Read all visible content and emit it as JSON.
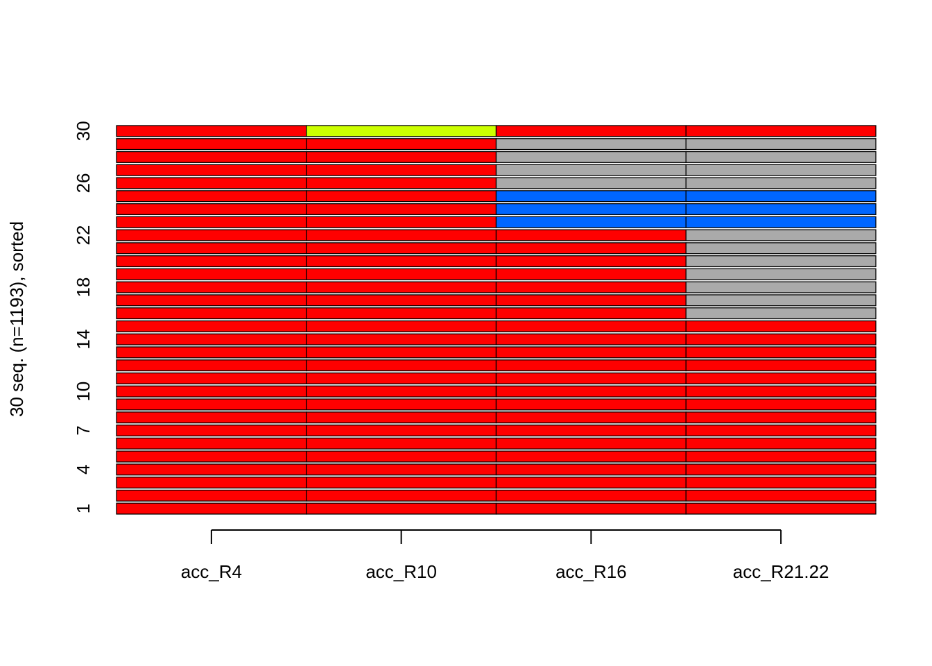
{
  "chart_data": {
    "type": "heatmap",
    "title": "",
    "xlabel": "",
    "ylabel": "30 seq. (n=1193), sorted",
    "categories": [
      "acc_R4",
      "acc_R10",
      "acc_R16",
      "acc_R21.22"
    ],
    "y_tick_labels": [
      "1",
      "4",
      "7",
      "10",
      "14",
      "18",
      "22",
      "26",
      "30"
    ],
    "y_tick_values": [
      1,
      4,
      7,
      10,
      14,
      18,
      22,
      26,
      30
    ],
    "states": {
      "R": "#ff0000",
      "Y": "#ccff00",
      "G": "#aaaaaa",
      "B": "#0066ff"
    },
    "sequences": [
      [
        "R",
        "R",
        "R",
        "R"
      ],
      [
        "R",
        "R",
        "R",
        "R"
      ],
      [
        "R",
        "R",
        "R",
        "R"
      ],
      [
        "R",
        "R",
        "R",
        "R"
      ],
      [
        "R",
        "R",
        "R",
        "R"
      ],
      [
        "R",
        "R",
        "R",
        "R"
      ],
      [
        "R",
        "R",
        "R",
        "R"
      ],
      [
        "R",
        "R",
        "R",
        "R"
      ],
      [
        "R",
        "R",
        "R",
        "R"
      ],
      [
        "R",
        "R",
        "R",
        "R"
      ],
      [
        "R",
        "R",
        "R",
        "R"
      ],
      [
        "R",
        "R",
        "R",
        "R"
      ],
      [
        "R",
        "R",
        "R",
        "R"
      ],
      [
        "R",
        "R",
        "R",
        "R"
      ],
      [
        "R",
        "R",
        "R",
        "R"
      ],
      [
        "R",
        "R",
        "R",
        "G"
      ],
      [
        "R",
        "R",
        "R",
        "G"
      ],
      [
        "R",
        "R",
        "R",
        "G"
      ],
      [
        "R",
        "R",
        "R",
        "G"
      ],
      [
        "R",
        "R",
        "R",
        "G"
      ],
      [
        "R",
        "R",
        "R",
        "G"
      ],
      [
        "R",
        "R",
        "R",
        "G"
      ],
      [
        "R",
        "R",
        "B",
        "B"
      ],
      [
        "R",
        "R",
        "B",
        "B"
      ],
      [
        "R",
        "R",
        "B",
        "B"
      ],
      [
        "R",
        "R",
        "G",
        "G"
      ],
      [
        "R",
        "R",
        "G",
        "G"
      ],
      [
        "R",
        "R",
        "G",
        "G"
      ],
      [
        "R",
        "R",
        "G",
        "G"
      ],
      [
        "R",
        "Y",
        "R",
        "R"
      ]
    ]
  }
}
